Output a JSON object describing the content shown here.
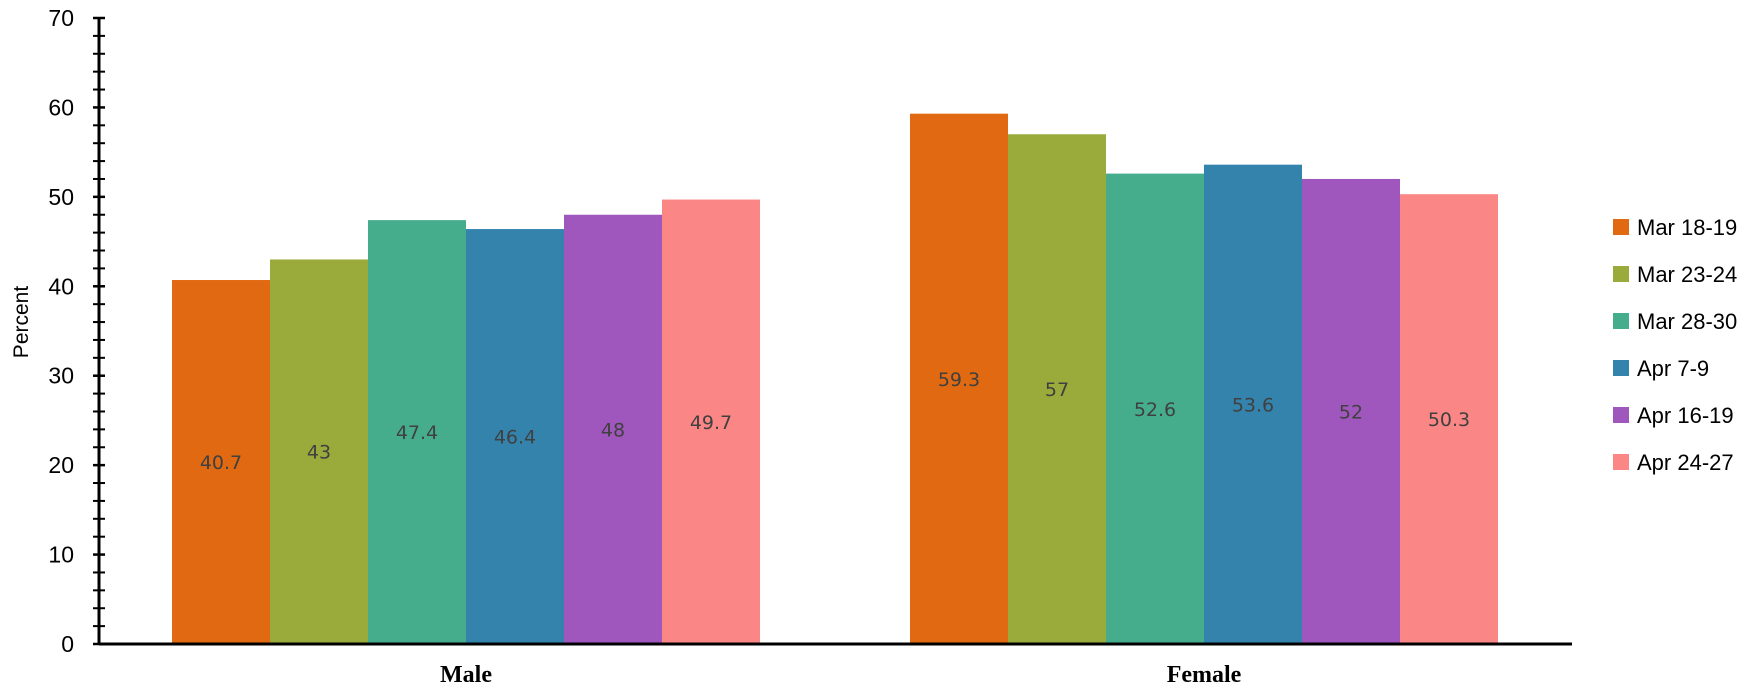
{
  "chart_data": {
    "type": "bar",
    "categories": [
      "Male",
      "Female"
    ],
    "series": [
      {
        "name": "Mar 18-19",
        "color": "#e06912",
        "values": [
          40.7,
          59.3
        ]
      },
      {
        "name": "Mar 23-24",
        "color": "#9aab3b",
        "values": [
          43,
          57
        ]
      },
      {
        "name": "Mar 28-30",
        "color": "#46ad8c",
        "values": [
          47.4,
          52.6
        ]
      },
      {
        "name": "Apr 7-9",
        "color": "#3483ad",
        "values": [
          46.4,
          53.6
        ]
      },
      {
        "name": "Apr 16-19",
        "color": "#a057bd",
        "values": [
          48,
          52
        ]
      },
      {
        "name": "Apr 24-27",
        "color": "#fa8785",
        "values": [
          49.7,
          50.3
        ]
      }
    ],
    "ylabel": "Percent",
    "ylim": [
      0,
      70
    ],
    "yticks": [
      0,
      10,
      20,
      30,
      40,
      50,
      60,
      70
    ],
    "legend_position": "right",
    "grid": false
  }
}
